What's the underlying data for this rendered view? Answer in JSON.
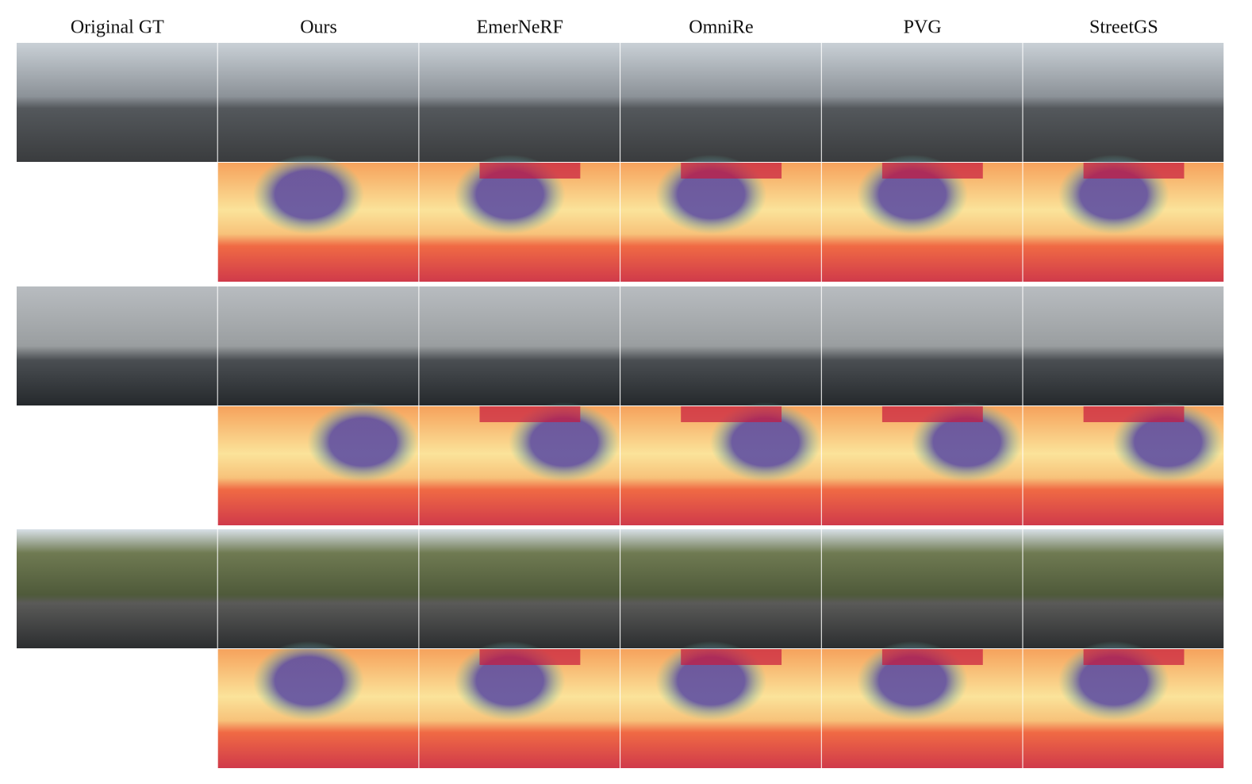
{
  "columns": [
    "Original GT",
    "Ours",
    "EmerNeRF",
    "OmniRe",
    "PVG",
    "StreetGS"
  ]
}
